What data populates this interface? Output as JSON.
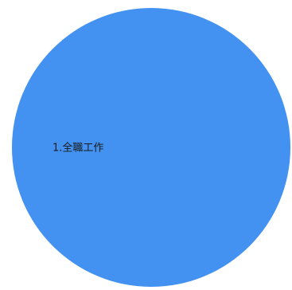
{
  "chart_data": {
    "type": "pie",
    "title": "",
    "slices": [
      {
        "label": "1.全職工作",
        "value": 100,
        "color": "#4391F1"
      }
    ],
    "legend": "none"
  }
}
